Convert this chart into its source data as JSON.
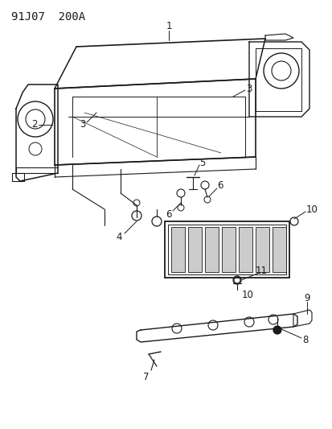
{
  "title": "91J07  200A",
  "bg_color": "#ffffff",
  "line_color": "#1a1a1a",
  "title_fontsize": 10,
  "label_fontsize": 8.5
}
